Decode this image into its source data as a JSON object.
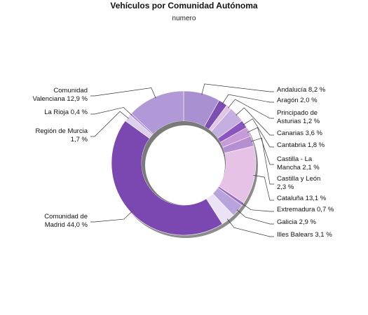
{
  "chart_data": {
    "type": "pie",
    "style": "donut",
    "title": "Vehículos por Comunidad Autónoma",
    "subtitle": "numero",
    "slices": [
      {
        "name": "Andalucía",
        "value": 8.2,
        "label": [
          "Andalucía 8,2 %"
        ],
        "color": "#a990d0",
        "side": "right"
      },
      {
        "name": "Aragón",
        "value": 2.0,
        "label": [
          "Aragón 2,0 %"
        ],
        "color": "#7b4fb2",
        "side": "right"
      },
      {
        "name": "Principado de Asturias",
        "value": 1.2,
        "label": [
          "Principado de",
          "Asturias 1,2 %"
        ],
        "color": "#e3c4e6",
        "side": "right"
      },
      {
        "name": "Canarias",
        "value": 3.6,
        "label": [
          "Canarias 3,6 %"
        ],
        "color": "#c4afe0",
        "side": "right"
      },
      {
        "name": "Cantabria",
        "value": 1.8,
        "label": [
          "Cantabria 1,8 %"
        ],
        "color": "#8a55be",
        "side": "right"
      },
      {
        "name": "Castilla - La Mancha",
        "value": 2.1,
        "label": [
          "Castilla - La",
          "Mancha 2,1 %"
        ],
        "color": "#c79ad8",
        "side": "right"
      },
      {
        "name": "Castilla y León",
        "value": 2.3,
        "label": [
          "Castilla y León",
          "2,3 %"
        ],
        "color": "#b58fd2",
        "side": "right"
      },
      {
        "name": "Cataluña",
        "value": 13.1,
        "label": [
          "Cataluña 13,1 %"
        ],
        "color": "#e6c2e6",
        "side": "right"
      },
      {
        "name": "Extremadura",
        "value": 0.7,
        "label": [
          "Extremadura 0,7 %"
        ],
        "color": "#9a70c6",
        "side": "right"
      },
      {
        "name": "Galicia",
        "value": 2.9,
        "label": [
          "Galicia 2,9 %"
        ],
        "color": "#b9a3dc",
        "side": "right"
      },
      {
        "name": "Illes Balears",
        "value": 3.1,
        "label": [
          "Illes Balears 3,1 %"
        ],
        "color": "#ebe2f5",
        "side": "right"
      },
      {
        "name": "Comunidad de Madrid",
        "value": 44.0,
        "label": [
          "Comunidad de",
          "Madrid 44,0 %"
        ],
        "color": "#7a48b0",
        "side": "left"
      },
      {
        "name": "Región de Murcia",
        "value": 1.7,
        "label": [
          "Región de Murcia",
          "1,7 %"
        ],
        "color": "#dcd0ef",
        "side": "left"
      },
      {
        "name": "La Rioja",
        "value": 0.4,
        "label": [
          "La Rioja 0,4 %"
        ],
        "color": "#a27ccd",
        "side": "left"
      },
      {
        "name": "Comunidad Valenciana",
        "value": 12.9,
        "label": [
          "Comunidad",
          "Valenciana 12,9 %"
        ],
        "color": "#b198d6",
        "side": "left"
      }
    ]
  }
}
